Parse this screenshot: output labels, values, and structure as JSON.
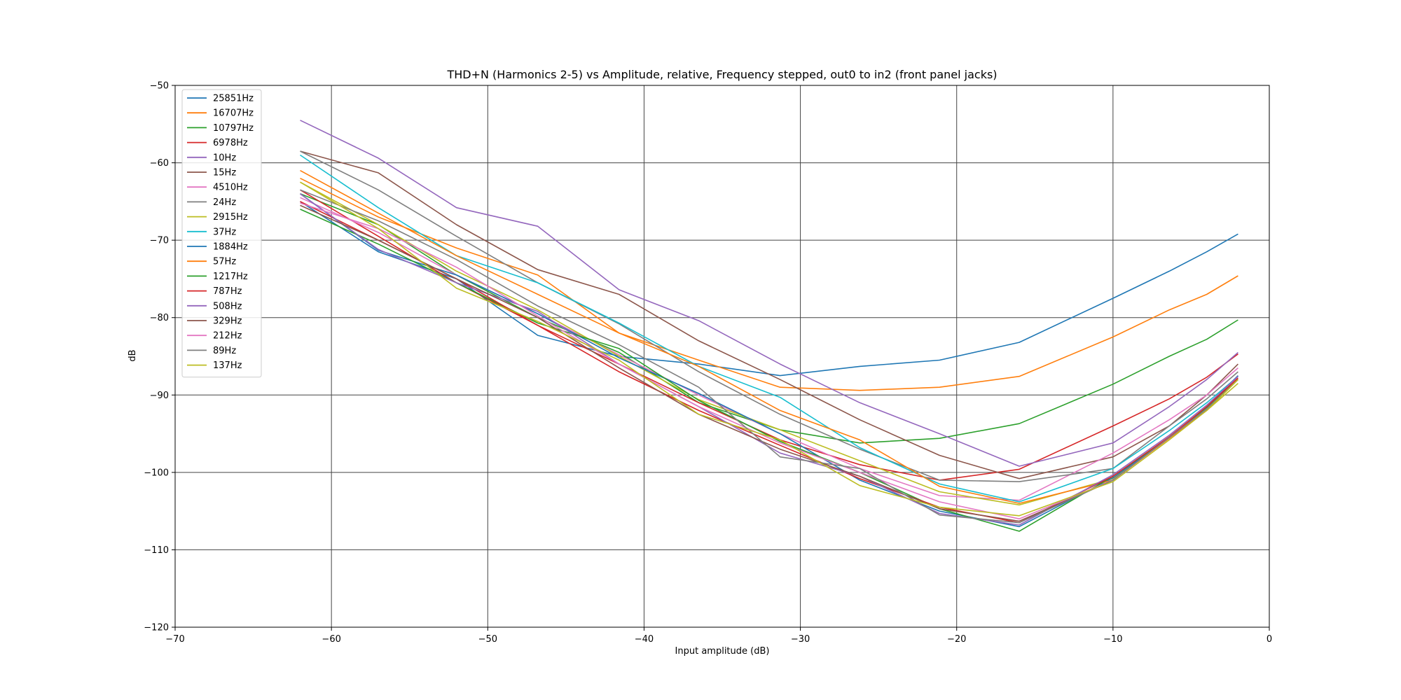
{
  "chart_data": {
    "type": "line",
    "title": "THD+N (Harmonics 2-5) vs Amplitude, relative, Frequency stepped, out0 to in2 (front panel jacks)",
    "xlabel": "Input amplitude (dB)",
    "ylabel": "dB",
    "xlim": [
      -70,
      0
    ],
    "ylim": [
      -120,
      -50
    ],
    "xticks": [
      -70,
      -60,
      -50,
      -40,
      -30,
      -20,
      -10,
      0
    ],
    "yticks": [
      -120,
      -110,
      -100,
      -90,
      -80,
      -70,
      -60,
      -50
    ],
    "xtick_labels": [
      "−70",
      "−60",
      "−50",
      "−40",
      "−30",
      "−20",
      "−10",
      "0"
    ],
    "ytick_labels": [
      "−120",
      "−110",
      "−100",
      "−90",
      "−80",
      "−70",
      "−60",
      "−50"
    ],
    "grid": true,
    "legend": "top-left",
    "x": [
      -62,
      -57,
      -52,
      -46.8,
      -41.6,
      -36.5,
      -31.3,
      -26.2,
      -21.1,
      -16,
      -10,
      -6.4,
      -4,
      -2
    ],
    "series": [
      {
        "name": "25851Hz",
        "color": "#1f77b4",
        "values": [
          -65,
          -71.5,
          -75,
          -82.3,
          -85,
          -86,
          -87.5,
          -86.3,
          -85.5,
          -83.2,
          -77.5,
          -74,
          -71.5,
          -69.2
        ]
      },
      {
        "name": "16707Hz",
        "color": "#ff7f0e",
        "values": [
          -62,
          -67,
          -71,
          -74.5,
          -82,
          -85.5,
          -89,
          -89.4,
          -89,
          -87.6,
          -82.5,
          -79,
          -77,
          -74.6
        ]
      },
      {
        "name": "10797Hz",
        "color": "#2ca02c",
        "values": [
          -64,
          -68,
          -74.5,
          -80,
          -84.5,
          -91,
          -94.5,
          -96.2,
          -95.6,
          -93.7,
          -88.6,
          -85,
          -82.8,
          -80.3
        ]
      },
      {
        "name": "6978Hz",
        "color": "#d62728",
        "values": [
          -63.5,
          -69.5,
          -75.5,
          -81,
          -86,
          -91,
          -95.8,
          -99,
          -101,
          -99.6,
          -94,
          -90.5,
          -87.7,
          -84.7
        ]
      },
      {
        "name": "10Hz",
        "color": "#9467bd",
        "values": [
          -54.5,
          -59.4,
          -65.8,
          -68.2,
          -76.4,
          -80.4,
          -86,
          -91,
          -95,
          -99.2,
          -96.2,
          -91.5,
          -88,
          -84.5
        ]
      },
      {
        "name": "15Hz",
        "color": "#8c564b",
        "values": [
          -58.5,
          -61.3,
          -68,
          -73.8,
          -77,
          -83,
          -88,
          -93.2,
          -97.8,
          -100.8,
          -98,
          -94,
          -90,
          -86
        ]
      },
      {
        "name": "4510Hz",
        "color": "#e377c2",
        "values": [
          -64.5,
          -69,
          -74.5,
          -79.5,
          -84.8,
          -90,
          -95,
          -99.5,
          -103,
          -103.6,
          -97.5,
          -93.2,
          -90,
          -86.5
        ]
      },
      {
        "name": "24Hz",
        "color": "#7f7f7f",
        "values": [
          -58.5,
          -63.5,
          -69.5,
          -75.5,
          -80.8,
          -87,
          -92.5,
          -97,
          -101,
          -101.2,
          -99.5,
          -94,
          -90.5,
          -87
        ]
      },
      {
        "name": "2915Hz",
        "color": "#bcbd22",
        "values": [
          -62.5,
          -68,
          -74,
          -79,
          -85,
          -90.6,
          -94.5,
          -98.5,
          -102.5,
          -104.2,
          -100.8,
          -95.5,
          -92,
          -88.5
        ]
      },
      {
        "name": "37Hz",
        "color": "#17becf",
        "values": [
          -59,
          -65.8,
          -72,
          -75.5,
          -80.7,
          -86.3,
          -90.3,
          -96.8,
          -101.5,
          -103.8,
          -99.5,
          -94.6,
          -91,
          -87.6
        ]
      },
      {
        "name": "1884Hz",
        "color": "#1f77b4",
        "values": [
          -64,
          -71.3,
          -74.5,
          -79.5,
          -85.2,
          -89.8,
          -95,
          -101,
          -105,
          -107,
          -100.7,
          -95.5,
          -91.5,
          -87.5
        ]
      },
      {
        "name": "57Hz",
        "color": "#ff7f0e",
        "values": [
          -61,
          -66.5,
          -72,
          -77,
          -82,
          -86.3,
          -92,
          -95.8,
          -101.8,
          -104,
          -101,
          -95.6,
          -92,
          -88
        ]
      },
      {
        "name": "1217Hz",
        "color": "#2ca02c",
        "values": [
          -66,
          -70.5,
          -75.5,
          -80.7,
          -84,
          -90.7,
          -96,
          -100,
          -104.7,
          -107.6,
          -100.5,
          -95.5,
          -91.6,
          -88
        ]
      },
      {
        "name": "787Hz",
        "color": "#d62728",
        "values": [
          -65,
          -70,
          -75,
          -81,
          -87,
          -92,
          -96.5,
          -100.8,
          -104.5,
          -106.5,
          -100.5,
          -95.4,
          -91.5,
          -87.8
        ]
      },
      {
        "name": "508Hz",
        "color": "#9467bd",
        "values": [
          -64,
          -71.2,
          -75.5,
          -79.2,
          -86,
          -91.5,
          -97.5,
          -100.5,
          -105.3,
          -106.8,
          -100.3,
          -95.2,
          -91.3,
          -87.6
        ]
      },
      {
        "name": "329Hz",
        "color": "#8c564b",
        "values": [
          -65.5,
          -70,
          -75,
          -80,
          -86.5,
          -92.5,
          -97,
          -100.5,
          -104.7,
          -106.3,
          -101,
          -95.5,
          -91.8,
          -88
        ]
      },
      {
        "name": "212Hz",
        "color": "#e377c2",
        "values": [
          -65.2,
          -68.5,
          -73.5,
          -79.8,
          -86,
          -91.5,
          -96.2,
          -100,
          -103.8,
          -106,
          -101,
          -95.5,
          -91.8,
          -88
        ]
      },
      {
        "name": "89Hz",
        "color": "#7f7f7f",
        "values": [
          -63.5,
          -67.5,
          -72.5,
          -78.5,
          -83.5,
          -89,
          -98,
          -99.5,
          -105.5,
          -106.5,
          -101,
          -95.5,
          -91.8,
          -88
        ]
      },
      {
        "name": "137Hz",
        "color": "#bcbd22",
        "values": [
          -62.5,
          -68.5,
          -76.2,
          -80.5,
          -85.5,
          -92.5,
          -95.8,
          -101.7,
          -104.5,
          -105.6,
          -101.2,
          -95.8,
          -92,
          -88
        ]
      }
    ]
  }
}
